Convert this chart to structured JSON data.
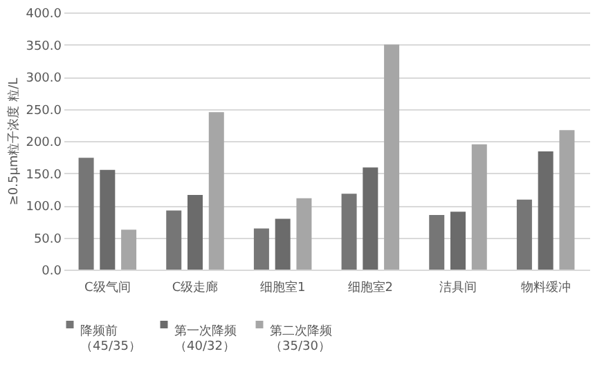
{
  "chart_data": {
    "type": "bar",
    "ylabel": "≥0.5μm粒子浓度  粒/L",
    "categories": [
      "C级气间",
      "C级走廊",
      "细胞室1",
      "细胞室2",
      "洁具间",
      "物料缓冲"
    ],
    "series": [
      {
        "name": "降频前（45/35）",
        "color": "#767676",
        "values": [
          174,
          92,
          64,
          118,
          85,
          109
        ]
      },
      {
        "name": "第一次降频（40/32）",
        "color": "#6b6b6b",
        "values": [
          155,
          116,
          79,
          159,
          90,
          184
        ]
      },
      {
        "name": "第二次降频（35/30）",
        "color": "#a6a6a6",
        "values": [
          62,
          245,
          111,
          350,
          195,
          217
        ]
      }
    ],
    "ylim": [
      0,
      400
    ],
    "yticks": [
      {
        "value": 0,
        "label": "0.0"
      },
      {
        "value": 50,
        "label": "50.0"
      },
      {
        "value": 100,
        "label": "100.0"
      },
      {
        "value": 150,
        "label": "150.0"
      },
      {
        "value": 200,
        "label": "200.0"
      },
      {
        "value": 250,
        "label": "250.0"
      },
      {
        "value": 300,
        "label": "300.0"
      },
      {
        "value": 350,
        "label": "350.0"
      },
      {
        "value": 400,
        "label": "400.0"
      }
    ],
    "grid": "y",
    "legend": "bottom"
  }
}
